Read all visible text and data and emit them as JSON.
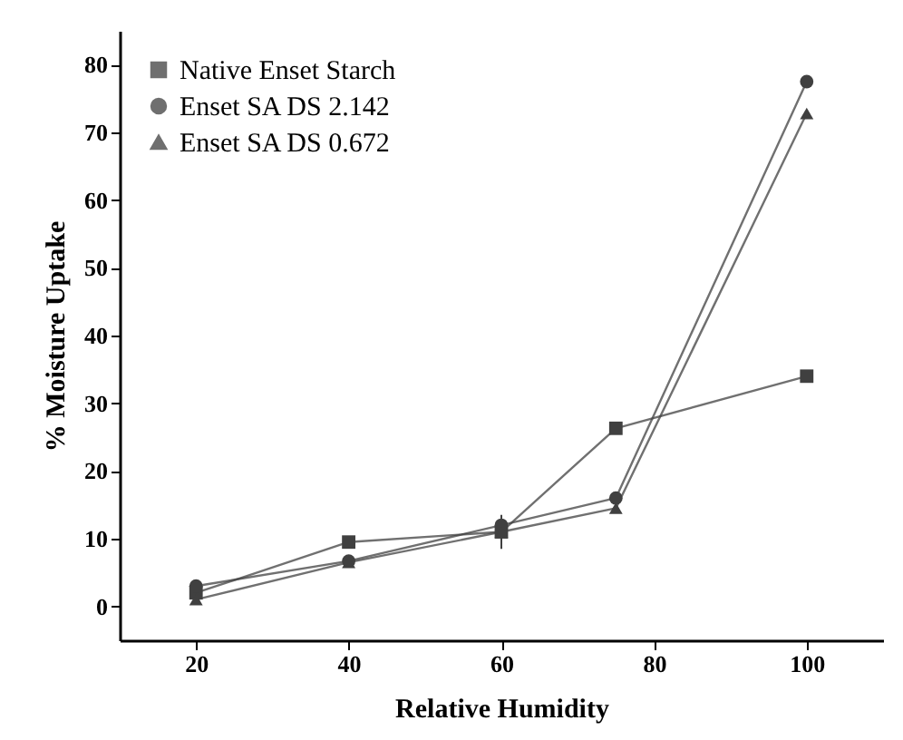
{
  "chart_data": {
    "type": "line",
    "xlabel": "Relative Humidity",
    "ylabel": "% Moisture Uptake",
    "x": [
      20,
      40,
      60,
      75,
      100
    ],
    "xlim": [
      10,
      110
    ],
    "xticks": [
      20,
      40,
      60,
      80,
      100
    ],
    "ylim": [
      -5,
      85
    ],
    "yticks": [
      0,
      10,
      20,
      30,
      40,
      50,
      60,
      70,
      80
    ],
    "grid": false,
    "legend": "top left",
    "series": [
      {
        "name": "Native Enset Starch",
        "color": "#404040",
        "marker": "square",
        "values": [
          2,
          9.5,
          11,
          26.3,
          34
        ]
      },
      {
        "name": "Enset SA DS 2.142",
        "color": "#404040",
        "marker": "circle",
        "values": [
          3,
          6.7,
          12,
          16,
          77.5
        ]
      },
      {
        "name": "Enset SA DS 0.672",
        "color": "#404040",
        "marker": "triangle",
        "values": [
          1,
          6.5,
          11,
          14.5,
          72.8
        ],
        "errors": [
          null,
          null,
          2.5,
          null,
          null
        ]
      }
    ]
  }
}
